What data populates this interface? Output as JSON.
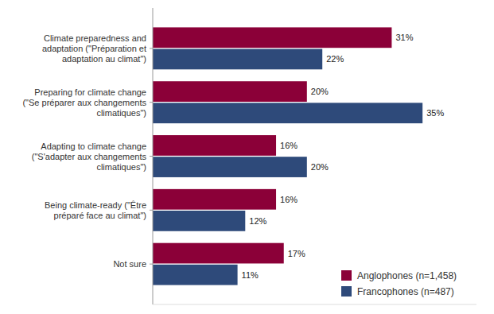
{
  "chart_data": {
    "type": "bar",
    "orientation": "horizontal",
    "categories": [
      "Climate preparedness and\nadaptation (\"Préparation et\nadaptation au climat\")",
      "Preparing for climate change\n(\"Se préparer aux changements\nclimatiques\")",
      "Adapting to climate change\n(\"S'adapter aux changements\nclimatiques\")",
      "Being climate-ready (\"Être\npréparé face au climat\")",
      "Not sure"
    ],
    "series": [
      {
        "name": "Anglophones (n=1,458)",
        "color": "#8B0038",
        "values": [
          31,
          20,
          16,
          16,
          17
        ],
        "value_labels": [
          "31%",
          "20%",
          "16%",
          "16%",
          "17%"
        ]
      },
      {
        "name": "Francophones (n=487)",
        "color": "#2E4A7A",
        "values": [
          22,
          35,
          20,
          12,
          11
        ],
        "value_labels": [
          "22%",
          "35%",
          "20%",
          "12%",
          "11%"
        ]
      }
    ],
    "xlim": [
      0,
      42
    ],
    "data_labels": true,
    "tick_labels": "y",
    "grid": false,
    "legend": "lower right"
  }
}
